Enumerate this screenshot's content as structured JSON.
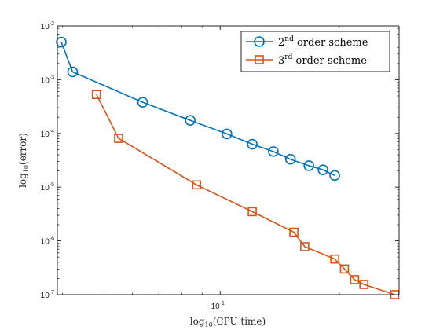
{
  "chart_data": {
    "type": "line",
    "title": "",
    "xlabel": "log",
    "xlabel_sub": "10",
    "xlabel_rest": "(CPU time)",
    "ylabel": "log",
    "ylabel_sub": "10",
    "ylabel_rest": "(error)",
    "x_scale": "log",
    "y_scale": "log",
    "xlim": [
      0.0388,
      0.283
    ],
    "ylim": [
      1e-07,
      0.01
    ],
    "grid": false,
    "legend_position": "top-right",
    "x_ticks": [
      {
        "value": 0.1,
        "base": "10",
        "exp": "-1"
      }
    ],
    "y_ticks": [
      {
        "value": 0.01,
        "base": "10",
        "exp": "-2"
      },
      {
        "value": 0.001,
        "base": "10",
        "exp": "-3"
      },
      {
        "value": 0.0001,
        "base": "10",
        "exp": "-4"
      },
      {
        "value": 1e-05,
        "base": "10",
        "exp": "-5"
      },
      {
        "value": 1e-06,
        "base": "10",
        "exp": "-6"
      },
      {
        "value": 1e-07,
        "base": "10",
        "exp": "-7"
      }
    ],
    "series": [
      {
        "name_base": "2",
        "name_sup": "nd",
        "name_rest": " order scheme",
        "color": "#0072BD",
        "marker": "circle",
        "x": [
          0.0397,
          0.0424,
          0.0637,
          0.084,
          0.104,
          0.1205,
          0.1362,
          0.1505,
          0.1675,
          0.1818,
          0.1947
        ],
        "y": [
          0.005,
          0.0014,
          0.00038,
          0.000175,
          9.8e-05,
          6.3e-05,
          4.6e-05,
          3.3e-05,
          2.5e-05,
          2.1e-05,
          1.65e-05
        ]
      },
      {
        "name_base": "3",
        "name_sup": "rd",
        "name_rest": " order scheme",
        "color": "#D95319",
        "marker": "square",
        "x": [
          0.0487,
          0.0554,
          0.0872,
          0.1205,
          0.1535,
          0.1635,
          0.1947,
          0.206,
          0.2185,
          0.2306,
          0.276
        ],
        "y": [
          0.00053,
          8.1e-05,
          1.1e-05,
          3.5e-06,
          1.45e-06,
          7.8e-07,
          4.6e-07,
          3e-07,
          1.9e-07,
          1.55e-07,
          1e-07
        ]
      }
    ]
  }
}
